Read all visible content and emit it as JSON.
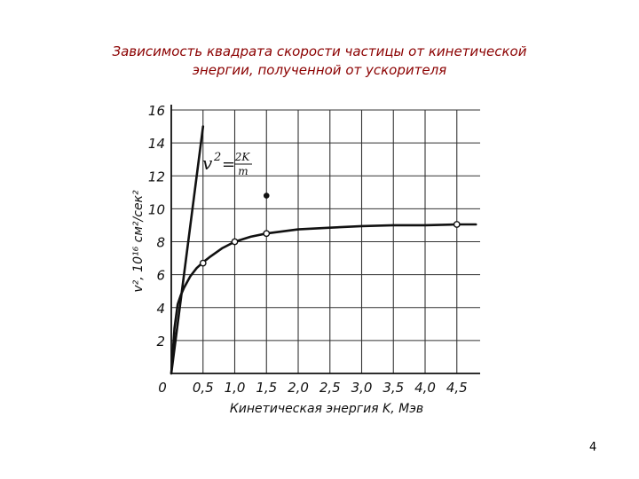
{
  "slide": {
    "title_line1": "Зависимость квадрата скорости частицы от кинетической",
    "title_line2": "энергии, полученной от ускорителя",
    "page_number": "4",
    "title_color": "#8b0000"
  },
  "chart_data": {
    "type": "line",
    "xlabel": "Кинетическая энергия K, Мэв",
    "ylabel": "v², 10¹⁶ см²/сек²",
    "xlim": [
      0,
      4.8
    ],
    "ylim": [
      0,
      16
    ],
    "x_ticks": [
      "0",
      "0,5",
      "1,0",
      "1,5",
      "2,0",
      "2,5",
      "3,0",
      "3,5",
      "4,0",
      "4,5"
    ],
    "y_ticks": [
      "2",
      "4",
      "6",
      "8",
      "10",
      "12",
      "14",
      "16"
    ],
    "grid": true,
    "annotation": {
      "lhs": "v",
      "exp": "2",
      "eq": "=",
      "num": "2K",
      "den": "m"
    },
    "series": [
      {
        "style": "classical-line",
        "x": [
          0,
          0.5
        ],
        "y": [
          0,
          15
        ]
      },
      {
        "style": "relativistic-curve",
        "x": [
          0,
          0.05,
          0.1,
          0.15,
          0.2,
          0.3,
          0.4,
          0.5,
          0.6,
          0.8,
          1.0,
          1.25,
          1.5,
          2.0,
          2.5,
          3.0,
          3.5,
          4.0,
          4.5,
          4.8
        ],
        "y": [
          0,
          2.75,
          4.2,
          4.75,
          5.2,
          5.9,
          6.4,
          6.75,
          7.05,
          7.6,
          8.0,
          8.3,
          8.5,
          8.75,
          8.85,
          8.95,
          9.0,
          9.0,
          9.05,
          9.05
        ]
      }
    ],
    "points": [
      {
        "x": 0.5,
        "y": 6.7,
        "style": "open"
      },
      {
        "x": 1.0,
        "y": 8.0,
        "style": "open"
      },
      {
        "x": 1.5,
        "y": 8.5,
        "style": "open"
      },
      {
        "x": 1.5,
        "y": 10.8,
        "style": "filled"
      },
      {
        "x": 4.5,
        "y": 9.05,
        "style": "open"
      }
    ]
  }
}
